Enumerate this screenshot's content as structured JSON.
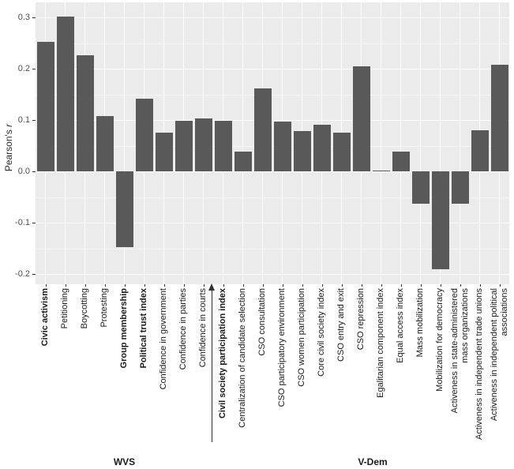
{
  "figure": {
    "y_axis_title_main": "Pearson's",
    "y_axis_title_italic": "r",
    "group_labels": {
      "wvs": "WVS",
      "vdem": "V-Dem"
    }
  },
  "colors": {
    "bar": "#595959",
    "panel_bg": "#EBEBEB",
    "grid_major": "#FFFFFF",
    "grid_minor": "rgba(255,255,255,0.55)",
    "tick_text": "#4D4D4D",
    "label_text": "#1A1A1A",
    "tick_mark": "#333333",
    "annotation": "#333333"
  },
  "chart_data": {
    "type": "bar",
    "title": "",
    "xlabel": "",
    "ylabel": "Pearson's r",
    "ylim": [
      -0.22,
      0.33
    ],
    "grid": "on",
    "legend": "none",
    "yticks": {
      "values": [
        0.3,
        0.2,
        0.1,
        0.0,
        -0.1,
        -0.2
      ],
      "labels": [
        "0.3",
        "0.2",
        "0.1",
        "0.0",
        "-0.1",
        "-0.2"
      ]
    },
    "yticks_minor": [
      0.25,
      0.15,
      0.05,
      -0.05,
      -0.15
    ],
    "categories": [
      {
        "label": "Civic activism",
        "value": 0.252,
        "bold": true
      },
      {
        "label": "Petitioning",
        "value": 0.302,
        "bold": false
      },
      {
        "label": "Boycotting",
        "value": 0.226,
        "bold": false
      },
      {
        "label": "Protesting",
        "value": 0.108,
        "bold": false
      },
      {
        "label": "Group membership",
        "value": -0.148,
        "bold": true
      },
      {
        "label": "Political trust index",
        "value": 0.142,
        "bold": true
      },
      {
        "label": "Confidence in government",
        "value": 0.075,
        "bold": false
      },
      {
        "label": "Confidence in parties",
        "value": 0.098,
        "bold": false
      },
      {
        "label": "Confidence in courts",
        "value": 0.103,
        "bold": false
      },
      {
        "label": "Civil society participation index",
        "value": 0.098,
        "bold": true
      },
      {
        "label": "Centralization of candidate selection",
        "value": 0.038,
        "bold": false
      },
      {
        "label": "CSO consultation",
        "value": 0.162,
        "bold": false
      },
      {
        "label": "CSO participatory environment",
        "value": 0.097,
        "bold": false
      },
      {
        "label": "CSO women participation",
        "value": 0.079,
        "bold": false
      },
      {
        "label": "Core civil society index",
        "value": 0.091,
        "bold": false
      },
      {
        "label": "CSO entry and exit",
        "value": 0.076,
        "bold": false
      },
      {
        "label": "CSO repression",
        "value": 0.205,
        "bold": false
      },
      {
        "label": "Egalitarian component index",
        "value": 0.002,
        "bold": false
      },
      {
        "label": "Equal access index",
        "value": 0.038,
        "bold": false
      },
      {
        "label": "Mass mobilization",
        "value": -0.063,
        "bold": false
      },
      {
        "label": "Mobilization for democracy",
        "value": -0.19,
        "bold": false
      },
      {
        "label": "Activeness in state-administered mass organizations",
        "value": -0.063,
        "bold": false,
        "lines": [
          "Activeness in state-administered",
          "mass organizations"
        ]
      },
      {
        "label": "Activeness in independent trade unions",
        "value": 0.08,
        "bold": false
      },
      {
        "label": "Activeness in independent political associations",
        "value": 0.207,
        "bold": false,
        "lines": [
          "Activeness in independent political",
          "associations"
        ]
      }
    ],
    "groups": [
      {
        "label": "WVS",
        "from_index": 0,
        "to_index": 8
      },
      {
        "label": "V-Dem",
        "from_index": 9,
        "to_index": 23
      }
    ],
    "annotation_arrow": {
      "target_category_index": 9,
      "meaning": "upward arrow marking Civil society participation index"
    }
  }
}
